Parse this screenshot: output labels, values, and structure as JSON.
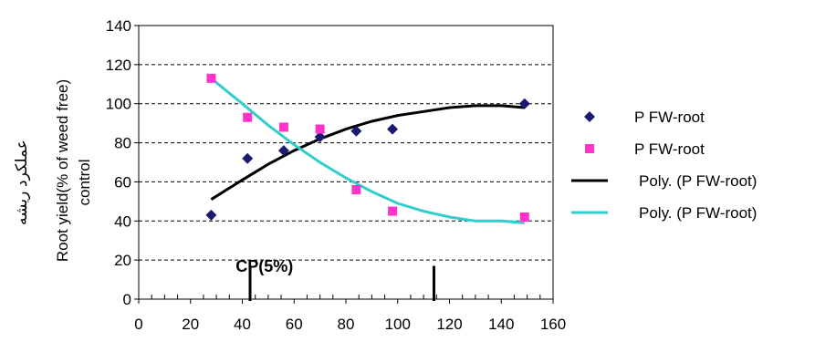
{
  "chart_data": {
    "type": "scatter",
    "title": "",
    "xlabel": "",
    "ylabel_lines": [
      "عملكرد ريشه",
      "Root yield(% of weed free)",
      "control"
    ],
    "xlim": [
      0,
      160
    ],
    "ylim": [
      0,
      140
    ],
    "x_ticks": [
      0,
      20,
      40,
      60,
      80,
      100,
      120,
      140,
      160
    ],
    "y_ticks": [
      0,
      20,
      40,
      60,
      80,
      100,
      120,
      140
    ],
    "grid": "horizontal dashed",
    "legend_position": "right",
    "series": [
      {
        "name": "P FW-root",
        "kind": "scatter",
        "marker": "diamond",
        "color": "#1a1a6e",
        "x": [
          28,
          42,
          56,
          70,
          84,
          98,
          149
        ],
        "y": [
          43,
          72,
          76,
          83,
          86,
          87,
          100
        ]
      },
      {
        "name": "P FW-root",
        "kind": "scatter",
        "marker": "square",
        "color": "#ff33cc",
        "x": [
          28,
          42,
          56,
          70,
          84,
          98,
          149
        ],
        "y": [
          113,
          93,
          88,
          87,
          56,
          45,
          42
        ]
      },
      {
        "name": "Poly. (P FW-root)",
        "kind": "line",
        "color": "#000000",
        "x": [
          28,
          40,
          50,
          60,
          70,
          80,
          90,
          100,
          110,
          120,
          130,
          140,
          149
        ],
        "y": [
          51,
          61,
          69,
          76,
          82,
          87,
          91,
          94,
          96,
          98,
          99,
          99,
          98
        ]
      },
      {
        "name": "Poly. (P FW-root)",
        "kind": "line",
        "color": "#33cccc",
        "x": [
          28,
          40,
          50,
          60,
          70,
          80,
          90,
          100,
          110,
          120,
          130,
          140,
          149
        ],
        "y": [
          113,
          100,
          89,
          79,
          70,
          62,
          55,
          49,
          45,
          42,
          40,
          40,
          39
        ]
      }
    ],
    "annotations": {
      "label": "CP(5%)",
      "markers_x": [
        43,
        114
      ]
    }
  }
}
